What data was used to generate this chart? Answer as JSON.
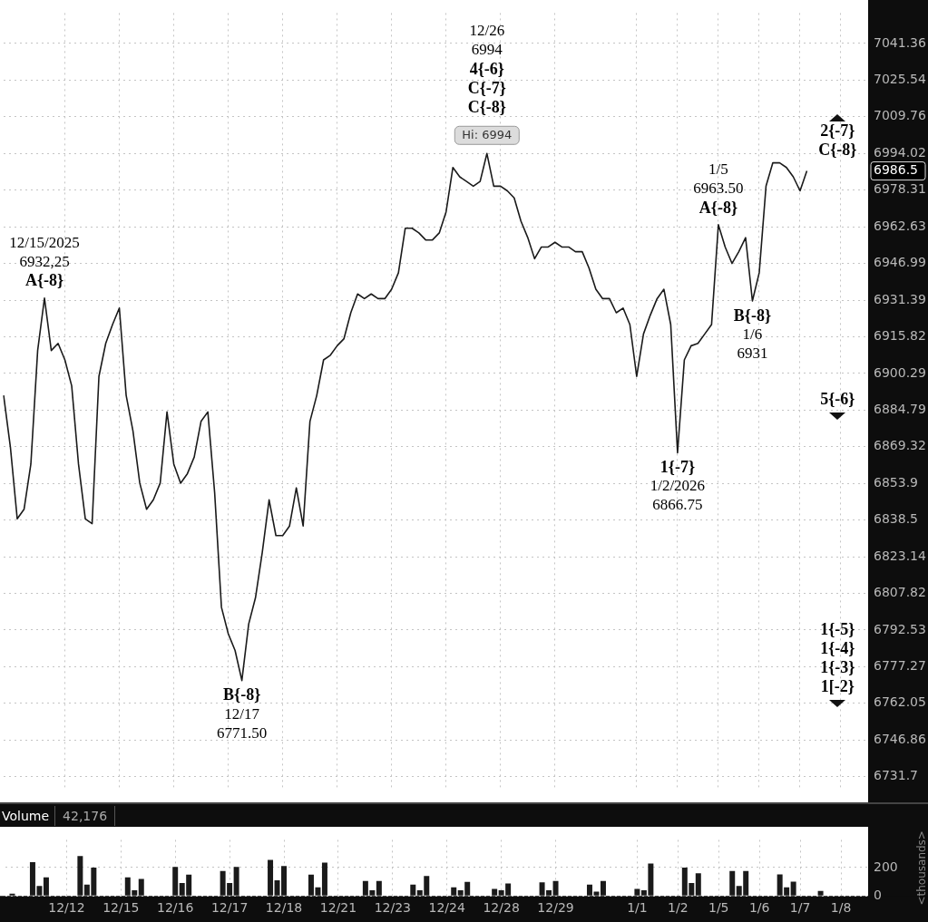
{
  "chart_data": [
    {
      "type": "line",
      "color": "#1a1a1a",
      "log": true,
      "grid": true,
      "tick_labels": "y",
      "categories": [
        null,
        null,
        null,
        null,
        null,
        null,
        null,
        null,
        null,
        null,
        null,
        null,
        null,
        null,
        null,
        null,
        null,
        null,
        null,
        null,
        null,
        null,
        null,
        null,
        null,
        null,
        null,
        null,
        null,
        null,
        null,
        null,
        null,
        null,
        null,
        null,
        null,
        null,
        null,
        null,
        null,
        null,
        null,
        null,
        null,
        null,
        null,
        null,
        null,
        null,
        null,
        null,
        null,
        null,
        null,
        null,
        null,
        null,
        null,
        null,
        null,
        null,
        null,
        null,
        null,
        null,
        null,
        null,
        null,
        null,
        null,
        null,
        null,
        null,
        null,
        null,
        null,
        null,
        null,
        null,
        null,
        null,
        null,
        null,
        null,
        null,
        null,
        null,
        null,
        null,
        null,
        null,
        null,
        null,
        null,
        null,
        null,
        null,
        null,
        null,
        null,
        null,
        null,
        null,
        null,
        null,
        null,
        null,
        null,
        null,
        null,
        null,
        null,
        null,
        null,
        null,
        null,
        null,
        null,
        null,
        null,
        null,
        null,
        null,
        null,
        null,
        null,
        null
      ],
      "values": [
        6891,
        6869,
        6839,
        6843,
        6862,
        6910,
        6932.25,
        6910,
        6913,
        6906,
        6895,
        6862,
        6839,
        6837,
        6899,
        6913,
        6921,
        6928,
        6891,
        6876,
        6854,
        6843,
        6847,
        6854,
        6884,
        6862,
        6854,
        6858,
        6865,
        6880,
        6884,
        6850,
        6802,
        6791,
        6784,
        6771.5,
        6795,
        6806,
        6825,
        6847,
        6832,
        6832,
        6836,
        6852,
        6836,
        6880,
        6891,
        6906,
        6908,
        6912,
        6915,
        6926,
        6934,
        6932,
        6934,
        6932,
        6932,
        6936,
        6943,
        6962,
        6962,
        6960,
        6957,
        6957,
        6960,
        6969,
        6988,
        6984,
        6982,
        6980,
        6982,
        6994,
        6980,
        6980,
        6978,
        6975,
        6965,
        6958,
        6949,
        6954,
        6954,
        6956,
        6954,
        6954,
        6952,
        6952,
        6945,
        6936,
        6932,
        6932,
        6926,
        6928,
        6921,
        6899,
        6917,
        6925,
        6932,
        6936,
        6921,
        6866.75,
        6906,
        6912,
        6913,
        6917,
        6921,
        6963.5,
        6954,
        6947,
        6952,
        6958,
        6931,
        6943,
        6980,
        6990,
        6990,
        6988,
        6984,
        6978,
        6986.5,
        null,
        null,
        null,
        null,
        null,
        null,
        null,
        null,
        null
      ],
      "ylim": [
        6726.5,
        7054.5
      ],
      "yticks": [
        6731.7,
        6746.86,
        6762.05,
        6777.27,
        6792.53,
        6807.82,
        6823.14,
        6838.5,
        6853.9,
        6869.32,
        6884.79,
        6900.29,
        6915.82,
        6931.39,
        6946.99,
        6962.63,
        6978.31,
        {
          "value": 6986.5,
          "label": "6986.5"
        },
        6994.02,
        7009.76,
        7025.54,
        7041.36
      ],
      "annotations": [
        {
          "text": "12/15/2025\n6932,25\nA{-8}",
          "y": 6932.25
        },
        {
          "text": "B{-8}\n12/17\n6771.50",
          "y": 6771.5
        },
        {
          "text": "Hi: 6994",
          "y": 6994
        },
        {
          "text": "12/26\n6994\n4{-6}\nC{-7}\nC{-8}",
          "y": 6994
        },
        {
          "text": "1/5\n6963.50\nA{-8}",
          "y": 6963.5
        },
        {
          "text": "B{-8}\n1/6\n6931",
          "y": 6931
        },
        {
          "text": "1{-7}\n1/2/2026\n6866.75",
          "y": 6866.75
        },
        "2{-7}\nC{-8}",
        "5{-6}",
        "1{-5}\n1{-4}\n1{-3}\n1[-2}"
      ]
    },
    {
      "type": "bar",
      "title": "Volume",
      "subtitle": "42,176",
      "ylabel": "<thousands>",
      "color": "#1a1a1a",
      "grid": true,
      "categories": [
        null,
        null,
        null,
        null,
        null,
        null,
        null,
        null,
        null,
        "12/12",
        null,
        null,
        null,
        null,
        null,
        null,
        null,
        "12/15",
        null,
        null,
        null,
        null,
        null,
        null,
        null,
        "12/16",
        null,
        null,
        null,
        null,
        null,
        null,
        null,
        "12/17",
        null,
        null,
        null,
        null,
        null,
        null,
        null,
        "12/18",
        null,
        null,
        null,
        null,
        null,
        null,
        null,
        "12/21",
        null,
        null,
        null,
        null,
        null,
        null,
        null,
        "12/23",
        null,
        null,
        null,
        null,
        null,
        null,
        null,
        "12/24",
        null,
        null,
        null,
        null,
        null,
        null,
        null,
        "12/28",
        null,
        null,
        null,
        null,
        null,
        null,
        null,
        "12/29",
        null,
        null,
        null,
        null,
        null,
        null,
        null,
        null,
        null,
        null,
        null,
        "1/1",
        null,
        null,
        null,
        null,
        null,
        "1/2",
        null,
        null,
        null,
        null,
        null,
        "1/5",
        null,
        null,
        null,
        null,
        null,
        "1/6",
        null,
        null,
        null,
        null,
        null,
        "1/7",
        null,
        null,
        null,
        null,
        null,
        "1/8",
        null,
        null,
        null,
        null
      ],
      "values": [
        null,
        15,
        null,
        null,
        238,
        70,
        130,
        null,
        null,
        null,
        null,
        281,
        80,
        200,
        null,
        null,
        null,
        null,
        130,
        40,
        120,
        null,
        null,
        null,
        null,
        204,
        90,
        150,
        null,
        null,
        null,
        null,
        175,
        90,
        205,
        null,
        null,
        null,
        null,
        253,
        110,
        210,
        null,
        null,
        null,
        150,
        60,
        235,
        null,
        null,
        null,
        null,
        null,
        105,
        40,
        105,
        null,
        null,
        null,
        null,
        80,
        40,
        140,
        null,
        null,
        null,
        60,
        40,
        98,
        null,
        null,
        null,
        50,
        40,
        88,
        null,
        null,
        null,
        null,
        95,
        40,
        105,
        null,
        null,
        null,
        null,
        80,
        30,
        105,
        null,
        null,
        null,
        null,
        50,
        40,
        228,
        null,
        null,
        null,
        null,
        200,
        90,
        160,
        null,
        null,
        null,
        null,
        175,
        70,
        175,
        null,
        null,
        null,
        null,
        151,
        60,
        100,
        null,
        null,
        null,
        35,
        null,
        null,
        null,
        null,
        null,
        null,
        null
      ],
      "ylim": [
        0,
        395
      ],
      "yticks": [
        0,
        200
      ]
    }
  ]
}
